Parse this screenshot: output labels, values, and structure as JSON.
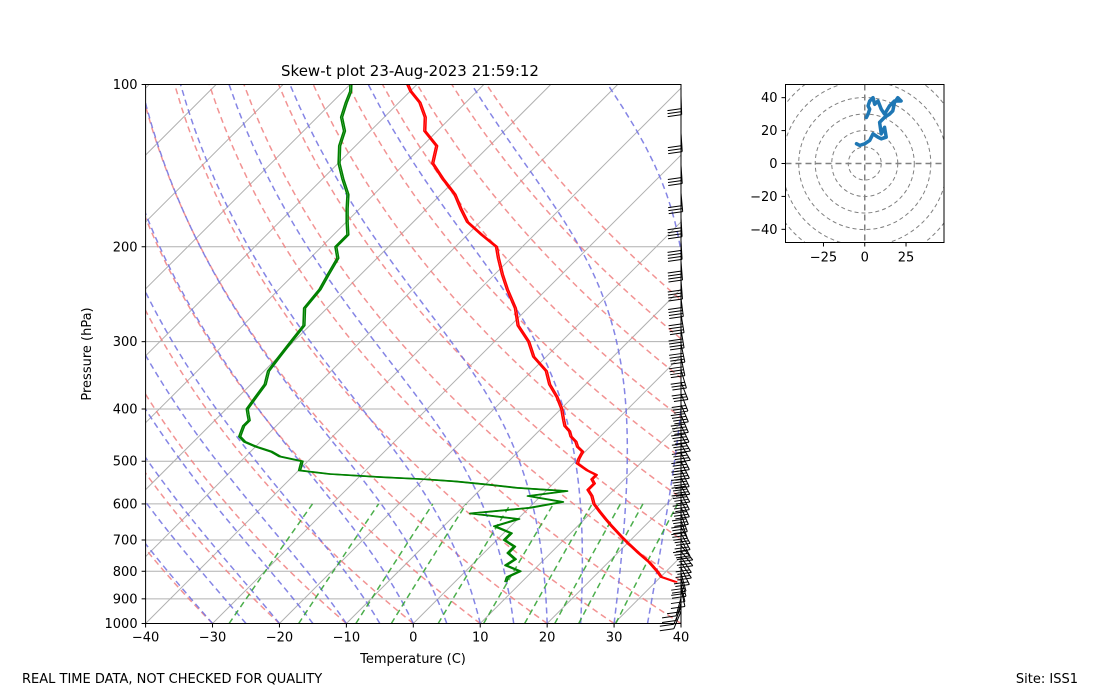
{
  "footer": {
    "left": "REAL TIME DATA, NOT CHECKED FOR QUALITY",
    "right": "Site: ISS1"
  },
  "chart_data": [
    {
      "type": "line",
      "title": "Skew-t plot 23-Aug-2023 21:59:12",
      "xlabel": "Temperature (C)",
      "ylabel": "Pressure (hPa)",
      "xlim": [
        -40,
        40
      ],
      "ylim": [
        1000,
        100
      ],
      "y_scale": "log",
      "x_ticks": [
        -40,
        -30,
        -20,
        -10,
        0,
        10,
        20,
        30,
        40
      ],
      "y_ticks": [
        100,
        200,
        300,
        400,
        500,
        600,
        700,
        800,
        900,
        1000
      ],
      "grid": true,
      "colors": {
        "temperature": "#ff0000",
        "dewpoint": "#008000",
        "dry_adiabat": "#f08080",
        "moist_adiabat": "#7070e0",
        "mixing_ratio": "#2ca02c",
        "isotherm": "#b0b0b0"
      },
      "series": [
        {
          "key": "temperature",
          "p": [
            838,
            820,
            800,
            770,
            740,
            710,
            690,
            660,
            640,
            620,
            600,
            580,
            565,
            550,
            540,
            530,
            520,
            505,
            495,
            480,
            470,
            460,
            450,
            440,
            430,
            420,
            410,
            400,
            380,
            360,
            340,
            320,
            300,
            280,
            260,
            240,
            225,
            210,
            200,
            190,
            180,
            170,
            160,
            150,
            140,
            130,
            122,
            115,
            108,
            103,
            100
          ],
          "t": [
            33.0,
            30.0,
            28.5,
            26.0,
            23.0,
            20.0,
            18.0,
            15.0,
            13.0,
            11.0,
            9.0,
            7.5,
            6.0,
            6.0,
            5.0,
            5.0,
            3.0,
            0.5,
            0.0,
            -0.5,
            -2.0,
            -3.0,
            -4.5,
            -5.5,
            -7.0,
            -8.0,
            -9.0,
            -10.0,
            -12.5,
            -15.5,
            -18.0,
            -22.0,
            -25.0,
            -29.0,
            -32.0,
            -36.0,
            -39.0,
            -42.0,
            -44.0,
            -48.0,
            -52.0,
            -55.0,
            -58.0,
            -62.0,
            -66.0,
            -68.0,
            -72.0,
            -74.0,
            -77.0,
            -80.0,
            -81.5
          ]
        },
        {
          "key": "dewpoint",
          "p": [
            838,
            820,
            800,
            780,
            760,
            740,
            720,
            700,
            680,
            660,
            640,
            625,
            610,
            595,
            580,
            568,
            560,
            552,
            545,
            540,
            535,
            528,
            520,
            510,
            500,
            490,
            480,
            470,
            460,
            450,
            440,
            430,
            420,
            410,
            400,
            380,
            360,
            340,
            320,
            300,
            280,
            260,
            240,
            225,
            210,
            200,
            190,
            180,
            170,
            160,
            150,
            140,
            130,
            122,
            115,
            108,
            103,
            100
          ],
          "t": [
            7.5,
            7.0,
            8.0,
            5.0,
            5.5,
            3.5,
            3.5,
            1.0,
            1.0,
            -2.5,
            0.0,
            -8.0,
            0.0,
            4.0,
            -2.0,
            3.0,
            -5.0,
            -10.0,
            -15.0,
            -20.0,
            -27.0,
            -35.0,
            -40.0,
            -40.5,
            -41.0,
            -45.0,
            -47.0,
            -50.0,
            -52.5,
            -54.0,
            -54.5,
            -55.0,
            -55.0,
            -56.0,
            -57.0,
            -57.5,
            -58.0,
            -59.5,
            -60.0,
            -60.5,
            -61.0,
            -63.5,
            -64.0,
            -65.0,
            -66.0,
            -68.0,
            -68.0,
            -70.0,
            -72.0,
            -74.0,
            -77.0,
            -80.0,
            -82.5,
            -84.0,
            -86.5,
            -88.0,
            -89.0,
            -90.0
          ]
        }
      ]
    },
    {
      "type": "line",
      "title": "",
      "xlim": [
        -48,
        48
      ],
      "ylim": [
        -48,
        48
      ],
      "x_ticks": [
        -25,
        0,
        25
      ],
      "y_ticks": [
        -40,
        -20,
        0,
        20,
        40
      ],
      "rings": [
        10,
        20,
        30,
        40,
        50,
        60
      ],
      "colors": {
        "hodograph": "#1f77b4",
        "rings": "#808080"
      },
      "series": [
        {
          "u": [
            -5,
            -3,
            0,
            3,
            5,
            8,
            10,
            13,
            12,
            10,
            9,
            12,
            15,
            17,
            18,
            20,
            22,
            18,
            15,
            12,
            10,
            8,
            6,
            5,
            3,
            2,
            3,
            2,
            1
          ],
          "v": [
            12,
            11,
            12,
            14,
            18,
            16,
            15,
            16,
            22,
            18,
            25,
            28,
            30,
            32,
            37,
            40,
            38,
            38,
            35,
            30,
            33,
            38,
            36,
            40,
            38,
            35,
            33,
            30,
            28
          ]
        }
      ]
    }
  ]
}
